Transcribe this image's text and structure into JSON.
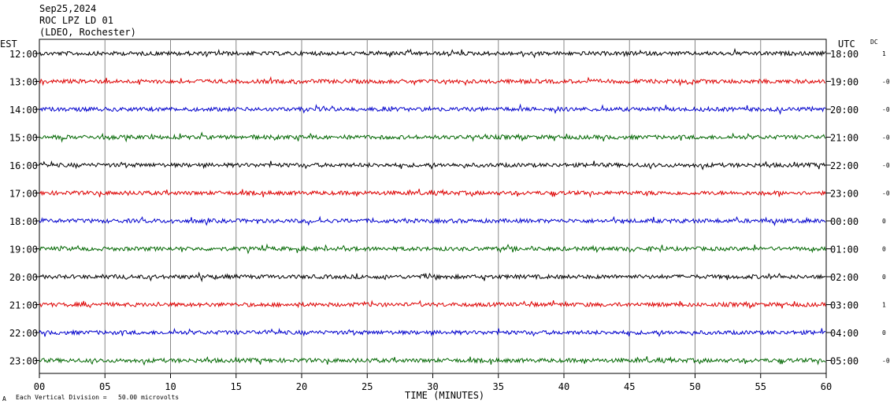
{
  "header": {
    "date": "Sep25,2024",
    "station": "ROC LPZ LD 01",
    "network": "(LDEO, Rochester)",
    "left_zone": "EST",
    "right_zone": "UTC",
    "dc_label": "DC"
  },
  "footer": {
    "scale_note": "Each Vertical Division =   50.00 microvolts",
    "corner_mark": "A"
  },
  "chart_data": {
    "type": "line",
    "title": "ROC LPZ LD 01",
    "xlabel": "TIME (MINUTES)",
    "ylabel": "",
    "xlim": [
      0,
      60
    ],
    "x_ticks": [
      "00",
      "05",
      "10",
      "15",
      "20",
      "25",
      "30",
      "35",
      "40",
      "45",
      "50",
      "55",
      "60"
    ],
    "grid": true,
    "trace_colors": [
      "#000000",
      "#dd0000",
      "#0000cc",
      "#006600"
    ],
    "rows": [
      {
        "est": "12:00",
        "utc": "18:00",
        "dc": "1"
      },
      {
        "est": "13:00",
        "utc": "19:00",
        "dc": "-0"
      },
      {
        "est": "14:00",
        "utc": "20:00",
        "dc": "-0"
      },
      {
        "est": "15:00",
        "utc": "21:00",
        "dc": "-0"
      },
      {
        "est": "16:00",
        "utc": "22:00",
        "dc": "-0"
      },
      {
        "est": "17:00",
        "utc": "23:00",
        "dc": "-0"
      },
      {
        "est": "18:00",
        "utc": "00:00",
        "dc": "0"
      },
      {
        "est": "19:00",
        "utc": "01:00",
        "dc": "0"
      },
      {
        "est": "20:00",
        "utc": "02:00",
        "dc": "0"
      },
      {
        "est": "21:00",
        "utc": "03:00",
        "dc": "1"
      },
      {
        "est": "22:00",
        "utc": "04:00",
        "dc": "0"
      },
      {
        "est": "23:00",
        "utc": "05:00",
        "dc": "-0"
      }
    ]
  }
}
